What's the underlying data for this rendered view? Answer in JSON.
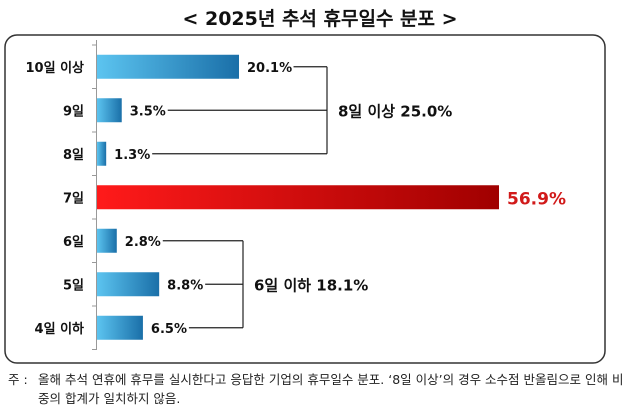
{
  "title": "< 2025년 추석 휴무일수 분포 >",
  "chart_data": {
    "type": "bar",
    "orientation": "horizontal",
    "categories": [
      "10일 이상",
      "9일",
      "8일",
      "7일",
      "6일",
      "5일",
      "4일 이하"
    ],
    "values": [
      20.1,
      3.5,
      1.3,
      56.9,
      2.8,
      8.8,
      6.5
    ],
    "value_labels": [
      "20.1%",
      "3.5%",
      "1.3%",
      "56.9%",
      "2.8%",
      "8.8%",
      "6.5%"
    ],
    "unit": "%",
    "xlim": [
      0,
      56.9
    ],
    "highlight_index": 3,
    "grid": false,
    "groups": [
      {
        "label": "8일 이상 25.0%",
        "members": [
          0,
          1,
          2
        ]
      },
      {
        "label": "6일 이하 18.1%",
        "members": [
          4,
          5,
          6
        ]
      }
    ]
  },
  "colors": {
    "bar_light": "#5cc4f0",
    "bar_dark": "#1a6fa8",
    "highlight_light": "#ff1a1a",
    "highlight_dark": "#a00000",
    "highlight_text": "#d11a1a",
    "frame": "#333333"
  },
  "note": {
    "prefix": "주 :",
    "text": "올해 추석 연휴에 휴무를 실시한다고 응답한 기업의 휴무일수 분포. ‘8일 이상’의 경우 소수점 반올림으로 인해 비중의 합계가 일치하지 않음."
  }
}
